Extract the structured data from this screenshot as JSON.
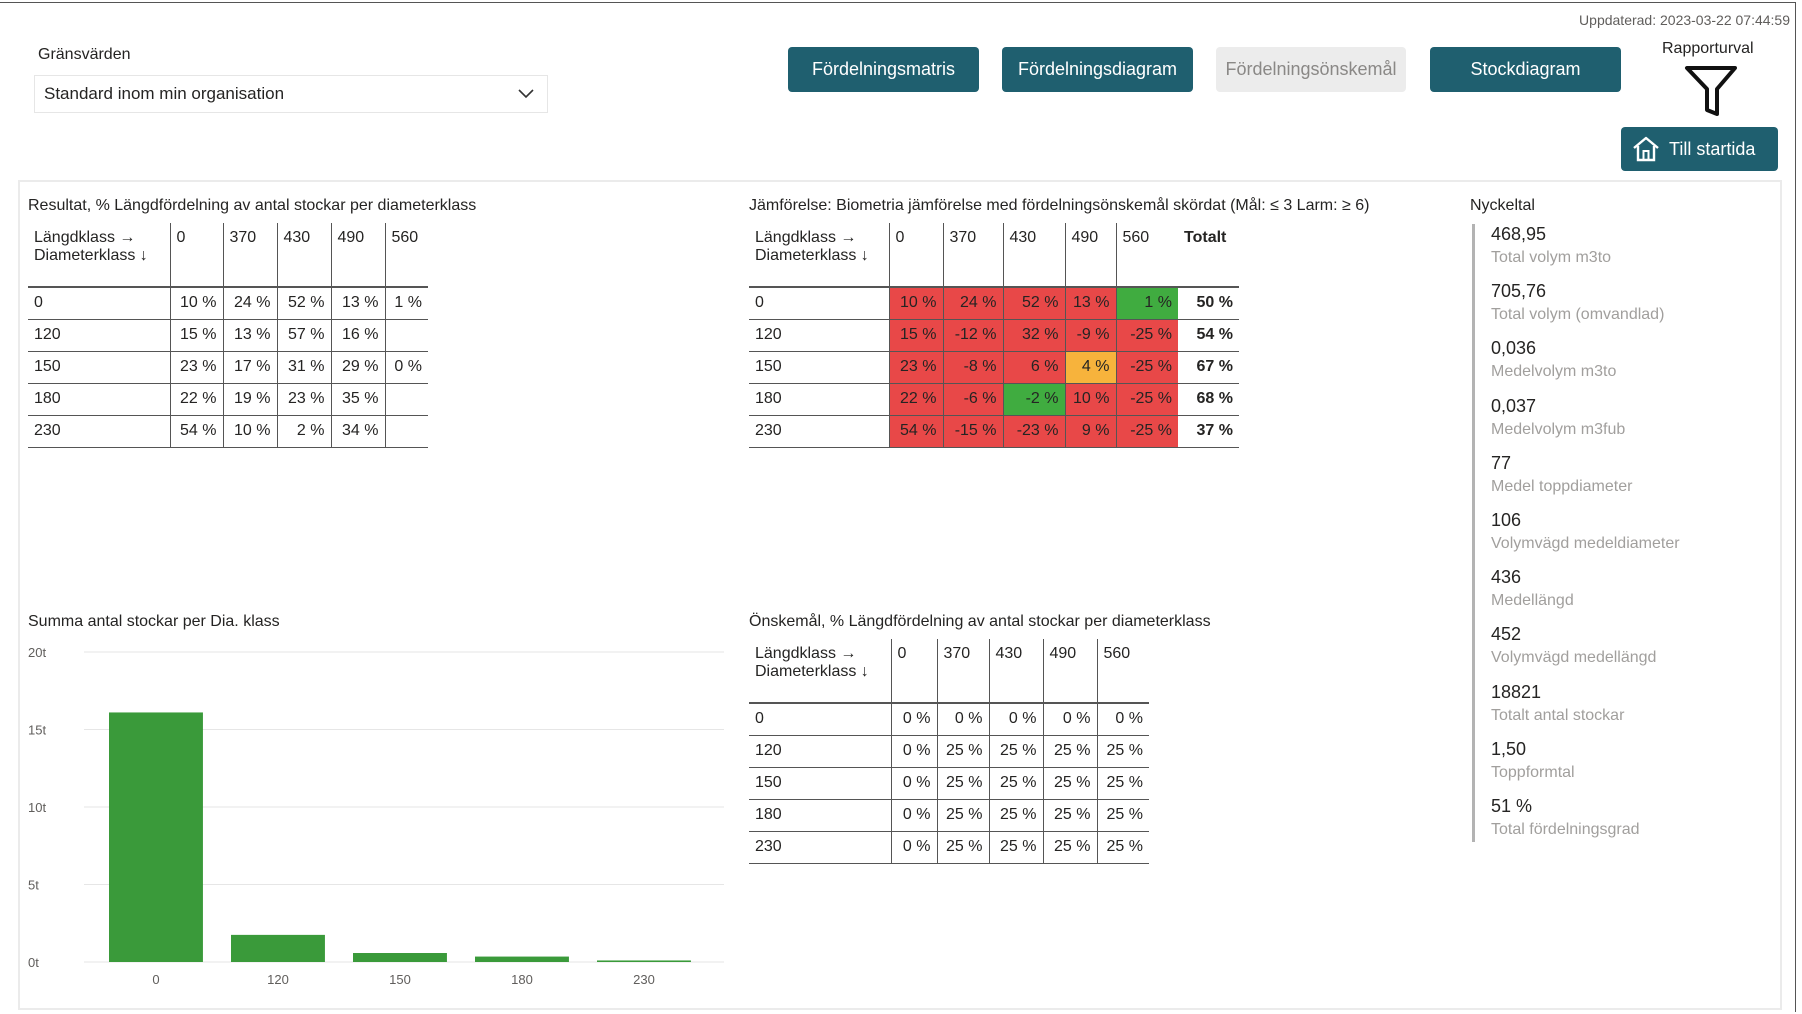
{
  "updated": "Uppdaterad: 2023-03-22 07:44:59",
  "gransvarden": {
    "label": "Gränsvärden",
    "selected": "Standard inom min organisation"
  },
  "nav": {
    "matris": "Fördelningsmatris",
    "diagram": "Fördelningsdiagram",
    "onskemal": "Fördelningsönskemål",
    "stock": "Stockdiagram"
  },
  "rapporturval": "Rapporturval",
  "home_label": "Till startida",
  "colors": {
    "accent": "#1f5f6f",
    "red": "#e84848",
    "green": "#40ac40",
    "orange": "#f7b33c",
    "bar": "#3a9a3a"
  },
  "resultat": {
    "title": "Resultat, % Längdfördelning av antal stockar per diameterklass",
    "corner": [
      "Längdklass →",
      "Diameterklass ↓"
    ],
    "cols": [
      "0",
      "370",
      "430",
      "490",
      "560"
    ],
    "rows": [
      {
        "label": "0",
        "cells": [
          "10 %",
          "24 %",
          "52 %",
          "13 %",
          "1 %"
        ]
      },
      {
        "label": "120",
        "cells": [
          "15 %",
          "13 %",
          "57 %",
          "16 %",
          ""
        ]
      },
      {
        "label": "150",
        "cells": [
          "23 %",
          "17 %",
          "31 %",
          "29 %",
          "0 %"
        ]
      },
      {
        "label": "180",
        "cells": [
          "22 %",
          "19 %",
          "23 %",
          "35 %",
          ""
        ]
      },
      {
        "label": "230",
        "cells": [
          "54 %",
          "10 %",
          "2 %",
          "34 %",
          ""
        ]
      }
    ]
  },
  "jamforelse": {
    "title": "Jämförelse: Biometria jämförelse med fördelningsönskemål skördat (Mål: ≤ 3 Larm: ≥ 6)",
    "corner": [
      "Längdklass →",
      "Diameterklass ↓"
    ],
    "cols": [
      "0",
      "370",
      "430",
      "490",
      "560"
    ],
    "total_label": "Totalt",
    "rows": [
      {
        "label": "0",
        "cells": [
          "10 %",
          "24 %",
          "52 %",
          "13 %",
          "1 %"
        ],
        "status": [
          "red",
          "red",
          "red",
          "red",
          "green"
        ],
        "total": "50 %"
      },
      {
        "label": "120",
        "cells": [
          "15 %",
          "-12 %",
          "32 %",
          "-9 %",
          "-25 %"
        ],
        "status": [
          "red",
          "red",
          "red",
          "red",
          "red"
        ],
        "total": "54 %"
      },
      {
        "label": "150",
        "cells": [
          "23 %",
          "-8 %",
          "6 %",
          "4 %",
          "-25 %"
        ],
        "status": [
          "red",
          "red",
          "red",
          "orange",
          "red"
        ],
        "total": "67 %"
      },
      {
        "label": "180",
        "cells": [
          "22 %",
          "-6 %",
          "-2 %",
          "10 %",
          "-25 %"
        ],
        "status": [
          "red",
          "red",
          "green",
          "red",
          "red"
        ],
        "total": "68 %"
      },
      {
        "label": "230",
        "cells": [
          "54 %",
          "-15 %",
          "-23 %",
          "9 %",
          "-25 %"
        ],
        "status": [
          "red",
          "red",
          "red",
          "red",
          "red"
        ],
        "total": "37 %"
      }
    ]
  },
  "onskemal": {
    "title": "Önskemål, % Längdfördelning av antal stockar per diameterklass",
    "corner": [
      "Längdklass →",
      "Diameterklass ↓"
    ],
    "cols": [
      "0",
      "370",
      "430",
      "490",
      "560"
    ],
    "rows": [
      {
        "label": "0",
        "cells": [
          "0 %",
          "0 %",
          "0 %",
          "0 %",
          "0 %"
        ]
      },
      {
        "label": "120",
        "cells": [
          "0 %",
          "25 %",
          "25 %",
          "25 %",
          "25 %"
        ]
      },
      {
        "label": "150",
        "cells": [
          "0 %",
          "25 %",
          "25 %",
          "25 %",
          "25 %"
        ]
      },
      {
        "label": "180",
        "cells": [
          "0 %",
          "25 %",
          "25 %",
          "25 %",
          "25 %"
        ]
      },
      {
        "label": "230",
        "cells": [
          "0 %",
          "25 %",
          "25 %",
          "25 %",
          "25 %"
        ]
      }
    ]
  },
  "nyckeltal": {
    "title": "Nyckeltal",
    "items": [
      {
        "value": "468,95",
        "label": "Total volym m3to"
      },
      {
        "value": "705,76",
        "label": "Total volym (omvandlad)"
      },
      {
        "value": "0,036",
        "label": "Medelvolym m3to"
      },
      {
        "value": "0,037",
        "label": "Medelvolym m3fub"
      },
      {
        "value": "77",
        "label": "Medel toppdiameter"
      },
      {
        "value": "106",
        "label": "Volymvägd medeldiameter"
      },
      {
        "value": "436",
        "label": "Medellängd"
      },
      {
        "value": "452",
        "label": "Volymvägd medellängd"
      },
      {
        "value": "18821",
        "label": "Totalt antal stockar"
      },
      {
        "value": "1,50",
        "label": "Toppformtal"
      },
      {
        "value": "51 %",
        "label": "Total fördelningsgrad"
      }
    ]
  },
  "chart_data": {
    "type": "bar",
    "title": "Summa antal stockar per Dia. klass",
    "categories": [
      "0",
      "120",
      "150",
      "180",
      "230"
    ],
    "values": [
      16100,
      1750,
      580,
      350,
      100
    ],
    "yticks": [
      "0t",
      "5t",
      "10t",
      "15t",
      "20t"
    ],
    "ylim": [
      0,
      20000
    ],
    "grid": true
  }
}
